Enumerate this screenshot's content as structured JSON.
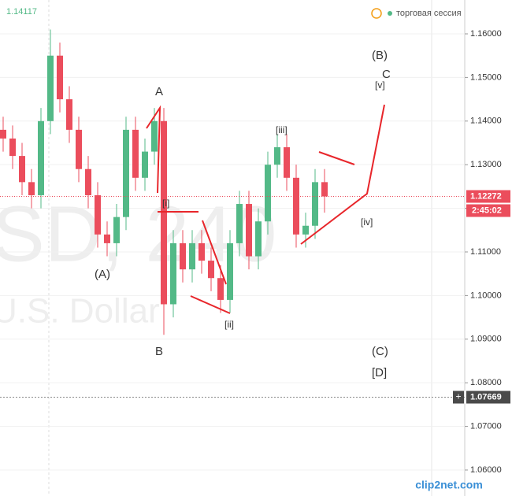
{
  "chart_data": {
    "type": "candlestick",
    "header_price": 1.14117,
    "session_label": "торговая сессия",
    "watermark": [
      "SD, 240",
      "U.S. Dollar"
    ],
    "open": [
      1.138,
      1.136,
      1.132,
      1.126,
      1.123,
      1.14,
      1.155,
      1.145,
      1.138,
      1.129,
      1.123,
      1.114,
      1.112,
      1.118,
      1.138,
      1.127,
      1.133,
      1.14,
      1.098,
      1.112,
      1.106,
      1.112,
      1.108,
      1.104,
      1.099,
      1.112,
      1.121,
      1.109,
      1.117,
      1.13,
      1.134,
      1.127,
      1.114,
      1.116,
      1.126
    ],
    "high": [
      1.141,
      1.139,
      1.135,
      1.129,
      1.143,
      1.161,
      1.158,
      1.148,
      1.141,
      1.132,
      1.126,
      1.117,
      1.121,
      1.141,
      1.141,
      1.136,
      1.143,
      1.143,
      1.115,
      1.115,
      1.115,
      1.115,
      1.111,
      1.107,
      1.115,
      1.124,
      1.124,
      1.12,
      1.133,
      1.137,
      1.137,
      1.13,
      1.119,
      1.129,
      1.129
    ],
    "low": [
      1.133,
      1.129,
      1.123,
      1.12,
      1.12,
      1.137,
      1.142,
      1.135,
      1.126,
      1.12,
      1.111,
      1.109,
      1.109,
      1.115,
      1.124,
      1.124,
      1.13,
      1.091,
      1.095,
      1.103,
      1.103,
      1.105,
      1.101,
      1.096,
      1.096,
      1.109,
      1.106,
      1.106,
      1.114,
      1.127,
      1.124,
      1.111,
      1.111,
      1.113,
      1.119
    ],
    "close": [
      1.136,
      1.132,
      1.126,
      1.123,
      1.14,
      1.155,
      1.145,
      1.138,
      1.129,
      1.123,
      1.114,
      1.112,
      1.118,
      1.138,
      1.127,
      1.133,
      1.14,
      1.098,
      1.112,
      1.106,
      1.112,
      1.108,
      1.104,
      1.099,
      1.112,
      1.121,
      1.109,
      1.117,
      1.13,
      1.134,
      1.127,
      1.114,
      1.116,
      1.126,
      1.12272
    ],
    "up_color": "#53b987",
    "down_color": "#eb4d5c",
    "ylim": [
      1.05404,
      1.16776
    ],
    "yticks": [
      {
        "value": 1.06,
        "label": "1.06000"
      },
      {
        "value": 1.07,
        "label": "1.07000"
      },
      {
        "value": 1.08,
        "label": "1.08000"
      },
      {
        "value": 1.09,
        "label": "1.09000"
      },
      {
        "value": 1.1,
        "label": "1.10000"
      },
      {
        "value": 1.11,
        "label": "1.11000"
      },
      {
        "value": 1.12,
        "label": "1.12000"
      },
      {
        "value": 1.13,
        "label": "1.13000"
      },
      {
        "value": 1.14,
        "label": "1.14000"
      },
      {
        "value": 1.15,
        "label": "1.15000"
      },
      {
        "value": 1.16,
        "label": "1.16000"
      }
    ],
    "last_price": 1.12272,
    "timer": "2:45:02",
    "cursor_price": 1.07669,
    "annotations": [
      "A",
      "B",
      "(A)",
      "(B)",
      "C",
      "[v]",
      "[iii]",
      "[i]",
      "[ii]",
      "[iv]",
      "(C)",
      "[D]",
      "+"
    ],
    "watermark_credit": "clip2net.com"
  }
}
